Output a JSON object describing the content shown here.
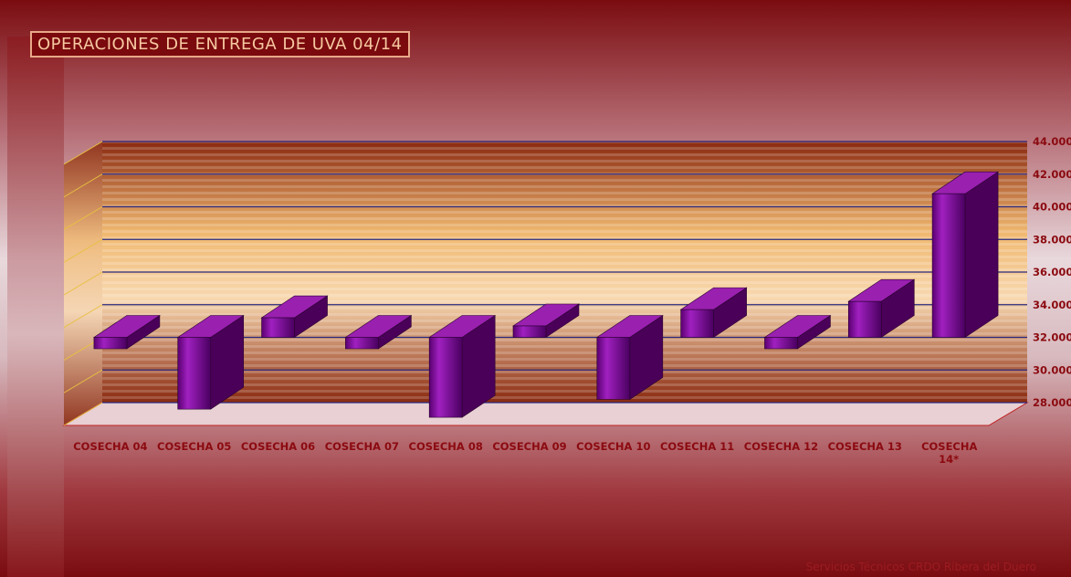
{
  "chart_data": {
    "type": "bar3d",
    "title": "OPERACIONES DE ENTREGA DE UVA 04/14",
    "categories": [
      "COSECHA 04",
      "COSECHA 05",
      "COSECHA 06",
      "COSECHA 07",
      "COSECHA 08",
      "COSECHA 09",
      "COSECHA 10",
      "COSECHA 11",
      "COSECHA 12",
      "COSECHA 13",
      "COSECHA 14*"
    ],
    "values": [
      31300,
      27600,
      33200,
      31300,
      27100,
      32700,
      28200,
      33700,
      31300,
      34200,
      40800
    ],
    "color": "#7a0090",
    "baseline": 32000,
    "ylim": [
      28000,
      44000
    ],
    "yticks": [
      {
        "value": 28000,
        "label": "28.000"
      },
      {
        "value": 30000,
        "label": "30.000"
      },
      {
        "value": 32000,
        "label": "32.000"
      },
      {
        "value": 34000,
        "label": "34.000"
      },
      {
        "value": 36000,
        "label": "36.000"
      },
      {
        "value": 38000,
        "label": "38.000"
      },
      {
        "value": 40000,
        "label": "40.000"
      },
      {
        "value": 42000,
        "label": "42.000"
      },
      {
        "value": 44000,
        "label": "44.000"
      }
    ],
    "grid": true
  },
  "footer": "Servicios Técnicos CRDO Ribera del Duero"
}
